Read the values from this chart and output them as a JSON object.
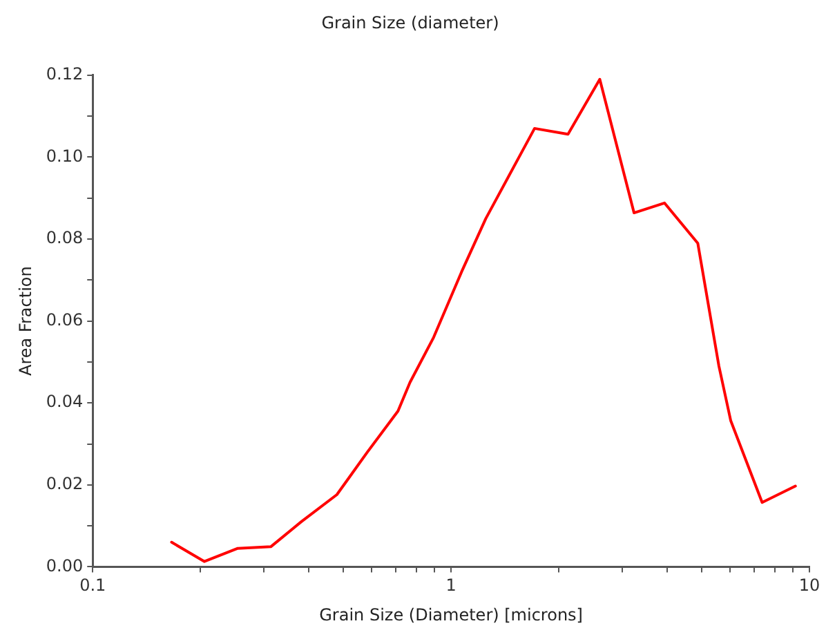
{
  "chart_data": {
    "type": "line",
    "title": "Grain Size (diameter)",
    "xlabel": "Grain Size (Diameter) [microns]",
    "ylabel": "Area Fraction",
    "log": "x",
    "grid": false,
    "legend": false,
    "marker": "none",
    "line_style": "solid",
    "xlim": [
      0.1,
      10
    ],
    "xticks": [
      0.1,
      {
        "value": 0.2,
        "label": null
      },
      {
        "value": 0.3,
        "label": null
      },
      {
        "value": 0.4,
        "label": null
      },
      {
        "value": 0.5,
        "label": null
      },
      {
        "value": 0.6,
        "label": null
      },
      {
        "value": 0.7,
        "label": null
      },
      {
        "value": 0.8,
        "label": null
      },
      {
        "value": 0.9,
        "label": null
      },
      1,
      {
        "value": 2,
        "label": null
      },
      {
        "value": 3,
        "label": null
      },
      {
        "value": 4,
        "label": null
      },
      {
        "value": 5,
        "label": null
      },
      {
        "value": 6,
        "label": null
      },
      {
        "value": 7,
        "label": null
      },
      {
        "value": 8,
        "label": null
      },
      {
        "value": 9,
        "label": null
      },
      10
    ],
    "ylim": [
      0,
      0.12
    ],
    "yticks": [
      {
        "value": 0,
        "label": "0.00"
      },
      {
        "value": 0.01,
        "label": null
      },
      {
        "value": 0.02,
        "label": "0.02"
      },
      {
        "value": 0.03,
        "label": null
      },
      {
        "value": 0.04,
        "label": "0.04"
      },
      {
        "value": 0.05,
        "label": null
      },
      {
        "value": 0.06,
        "label": "0.06"
      },
      {
        "value": 0.07,
        "label": null
      },
      {
        "value": 0.08,
        "label": "0.08"
      },
      {
        "value": 0.09,
        "label": null
      },
      {
        "value": 0.1,
        "label": "0.10"
      },
      {
        "value": 0.11,
        "label": null
      },
      {
        "value": 0.12,
        "label": "0.12"
      }
    ],
    "x": [
      0.166,
      0.205,
      0.254,
      0.314,
      0.382,
      0.48,
      0.584,
      0.711,
      0.768,
      0.894,
      1.07,
      1.25,
      1.71,
      2.12,
      2.6,
      3.24,
      3.94,
      4.88,
      5.59,
      6.03,
      7.38,
      9.14
    ],
    "series": [
      {
        "color": "#ff0000",
        "values": [
          0.006,
          0.0013,
          0.0045,
          0.0049,
          0.011,
          0.0176,
          0.028,
          0.038,
          0.045,
          0.056,
          0.072,
          0.085,
          0.107,
          0.1056,
          0.119,
          0.0864,
          0.0888,
          0.079,
          0.049,
          0.0357,
          0.0157,
          0.0197
        ]
      }
    ]
  }
}
